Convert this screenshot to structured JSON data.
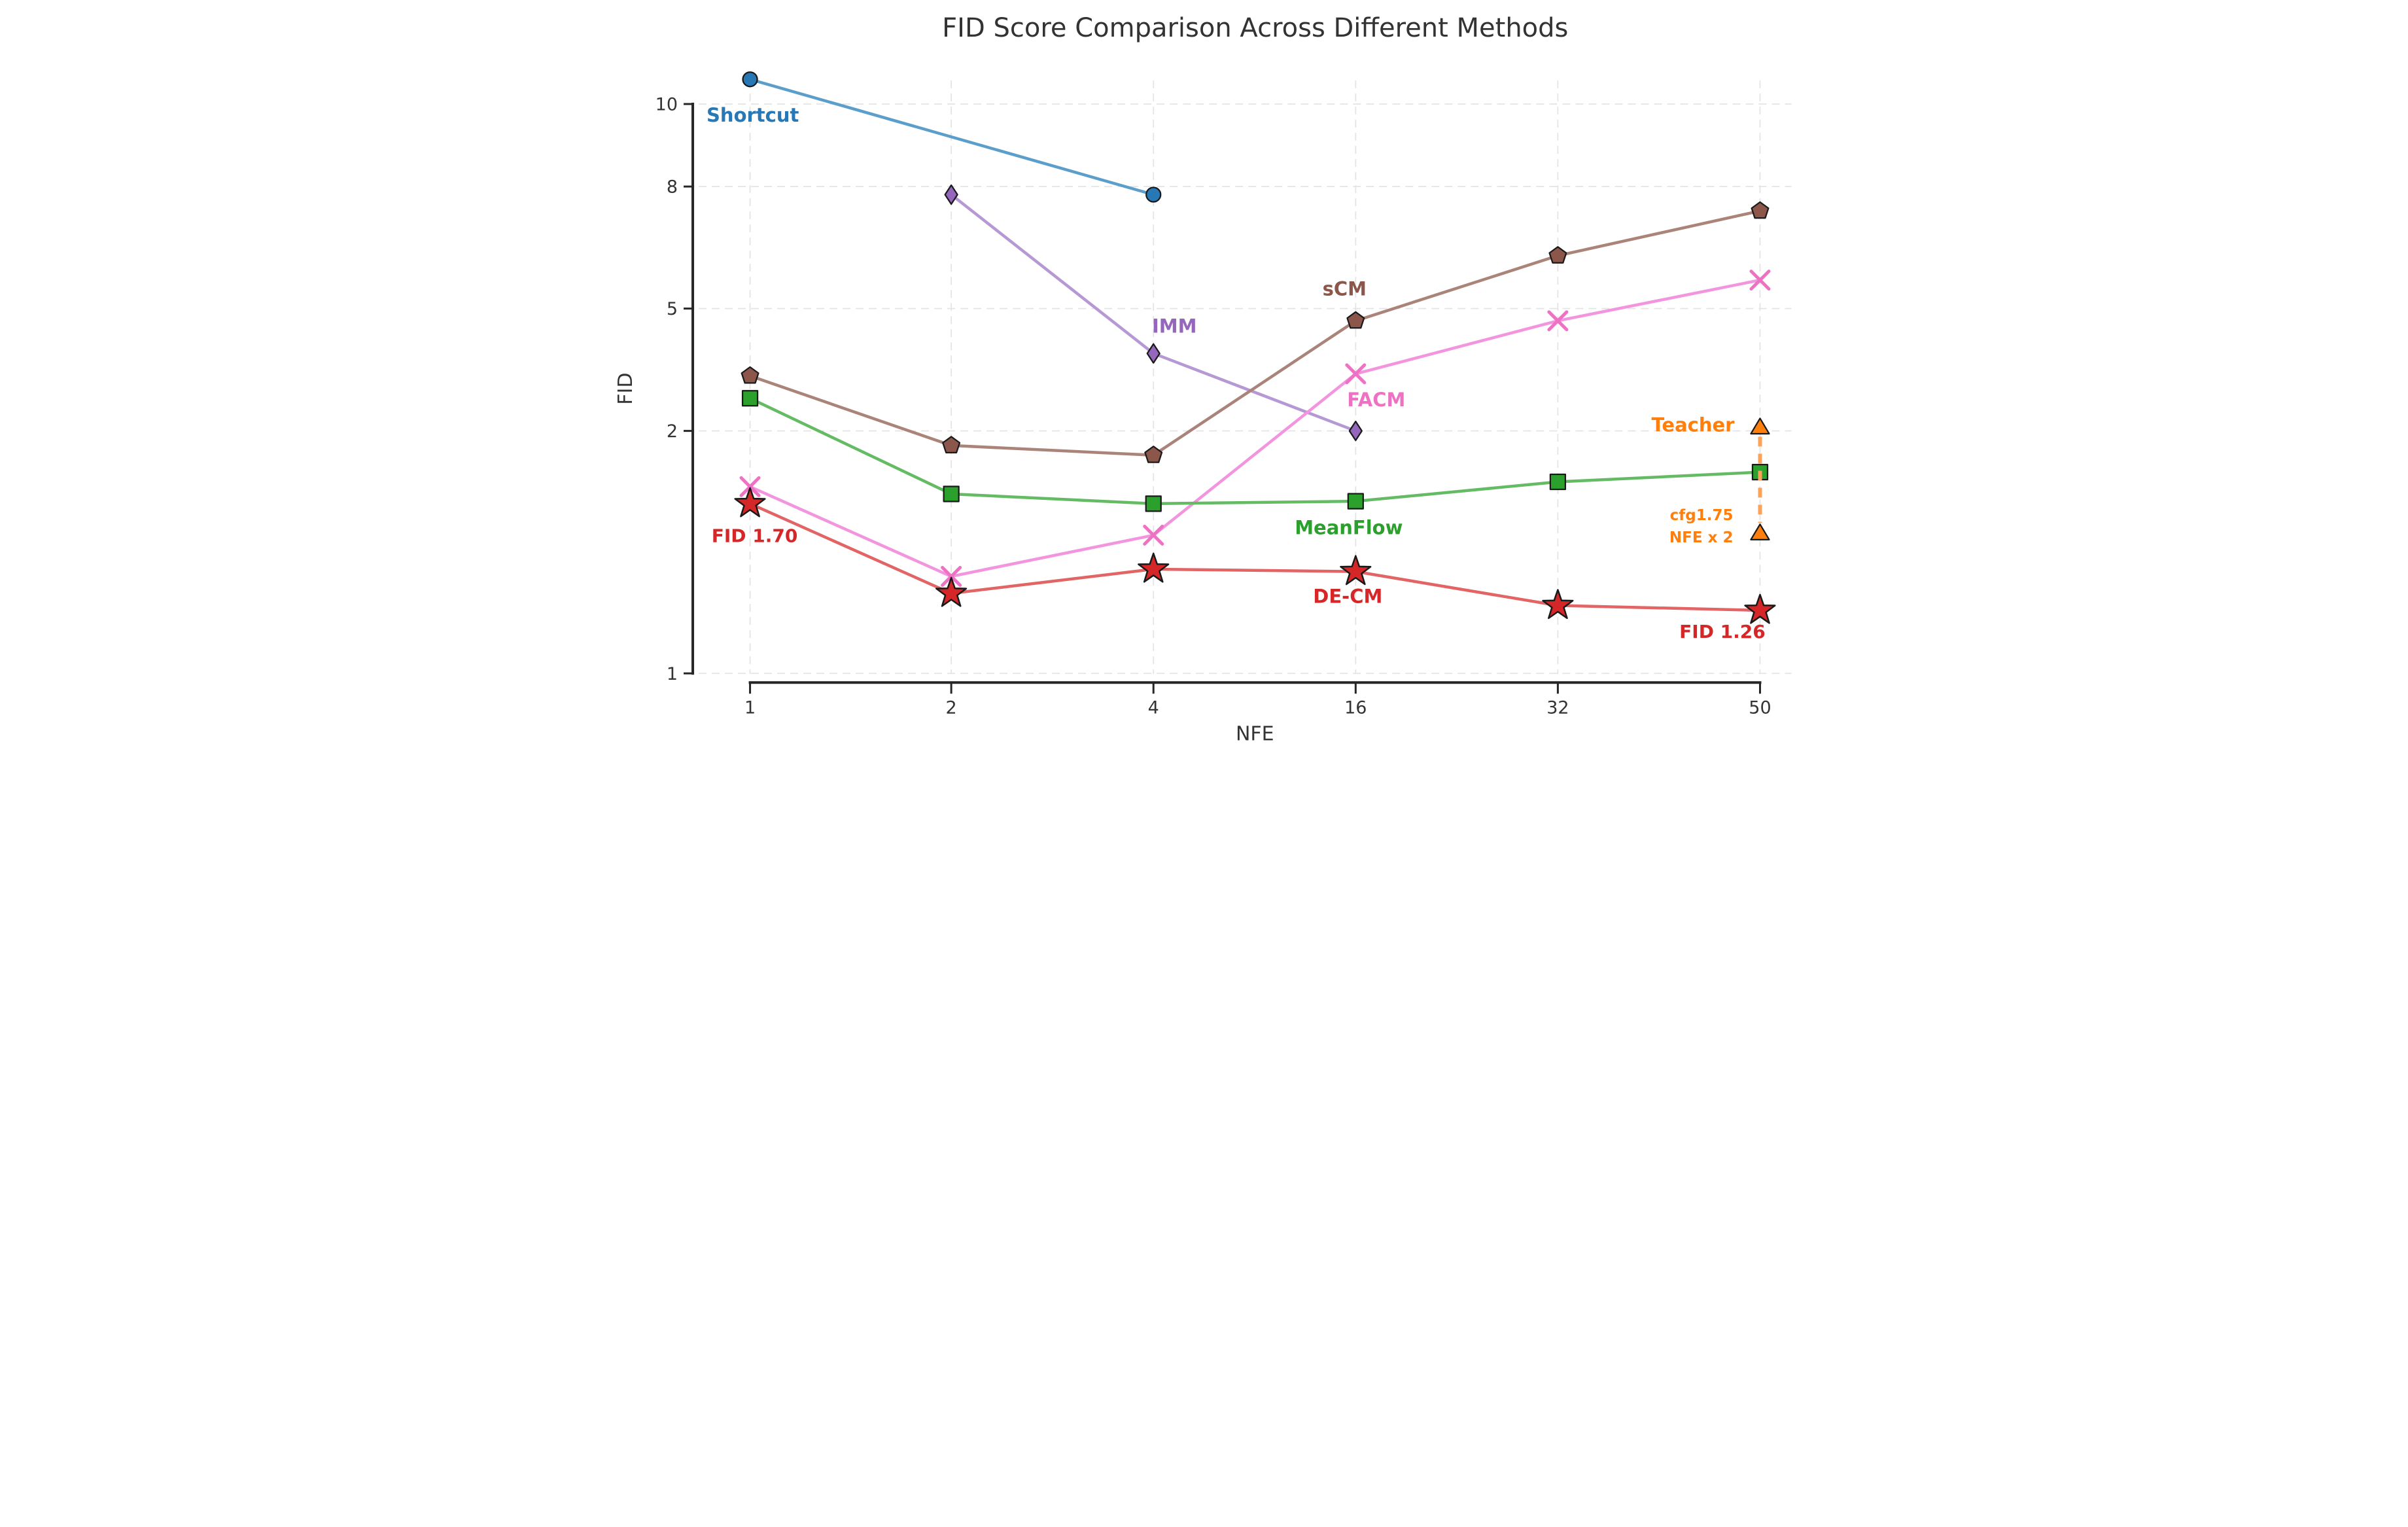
{
  "figure": {
    "title": "FID Score Comparison Across Different Methods",
    "title_color": "#333333"
  },
  "axes": {
    "x_label": "NFE",
    "y_label": "FID",
    "x_tick_labels": [
      "1",
      "2",
      "4",
      "16",
      "32",
      "50"
    ],
    "y_tick_labels": [
      "10",
      "8",
      "5",
      "2",
      "1"
    ],
    "spine_color": "#262626",
    "grid_color": "#e4e4e4",
    "tick_label_color": "#333333"
  },
  "chart_data": {
    "type": "line",
    "title": "FID Score Comparison Across Different Methods",
    "xlabel": "NFE",
    "ylabel": "FID",
    "x_categories": [
      1,
      2,
      4,
      16,
      32,
      50
    ],
    "y_ticks": [
      1,
      2,
      5,
      8,
      10
    ],
    "ylim": [
      1,
      10.8
    ],
    "y_scale": "custom: strongly expanded between 1 and 2, roughly linear from 2 to 10",
    "grid": true,
    "legend_position": "inline-labels",
    "series": [
      {
        "name": "Shortcut",
        "color": "#2878b5",
        "line_color": "#5b9ecb",
        "marker": "circle",
        "x": [
          1,
          4
        ],
        "y": [
          10.6,
          7.8
        ]
      },
      {
        "name": "IMM",
        "color": "#9467bd",
        "line_color": "#b598d4",
        "marker": "diamond",
        "x": [
          2,
          4,
          16
        ],
        "y": [
          7.8,
          3.9,
          2.0
        ]
      },
      {
        "name": "sCM",
        "color": "#8c564b",
        "line_color": "#aa8379",
        "marker": "pentagon",
        "x": [
          1,
          2,
          4,
          16,
          32,
          50
        ],
        "y": [
          3.35,
          1.94,
          1.9,
          4.7,
          6.3,
          7.4
        ]
      },
      {
        "name": "FACM",
        "color": "#ee72c3",
        "line_color": "#f394de",
        "marker": "x",
        "x": [
          1,
          2,
          4,
          16,
          32,
          50
        ],
        "y": [
          1.77,
          1.4,
          1.57,
          3.4,
          4.7,
          5.7
        ]
      },
      {
        "name": "MeanFlow",
        "color": "#2ca02c",
        "line_color": "#64bb64",
        "marker": "square",
        "x": [
          1,
          2,
          4,
          16,
          32,
          50
        ],
        "y": [
          2.8,
          1.74,
          1.7,
          1.71,
          1.79,
          1.83
        ]
      },
      {
        "name": "DE-CM",
        "color": "#d62728",
        "line_color": "#e26465",
        "marker": "star",
        "x": [
          1,
          2,
          4,
          16,
          32,
          50
        ],
        "y": [
          1.7,
          1.33,
          1.43,
          1.42,
          1.28,
          1.26
        ]
      },
      {
        "name": "Teacher",
        "color": "#ff7f0e",
        "line_color": "#fba35b",
        "marker": "triangle",
        "x": [
          50,
          50
        ],
        "y": [
          2.1,
          1.58
        ],
        "line_style": "dashed-vertical"
      }
    ],
    "annotations": [
      {
        "id": "fid-170",
        "text": "FID 1.70",
        "color": "#d62728",
        "refers_to": "DE-CM at NFE 1"
      },
      {
        "id": "fid-126",
        "text": "FID 1.26",
        "color": "#d62728",
        "refers_to": "DE-CM at NFE 50"
      },
      {
        "id": "cfg-line1",
        "text": "cfg1.75",
        "color": "#ff7f0e",
        "refers_to": "Teacher lower point"
      },
      {
        "id": "cfg-line2",
        "text": "NFE x 2",
        "color": "#ff7f0e",
        "refers_to": "Teacher lower point"
      }
    ]
  }
}
